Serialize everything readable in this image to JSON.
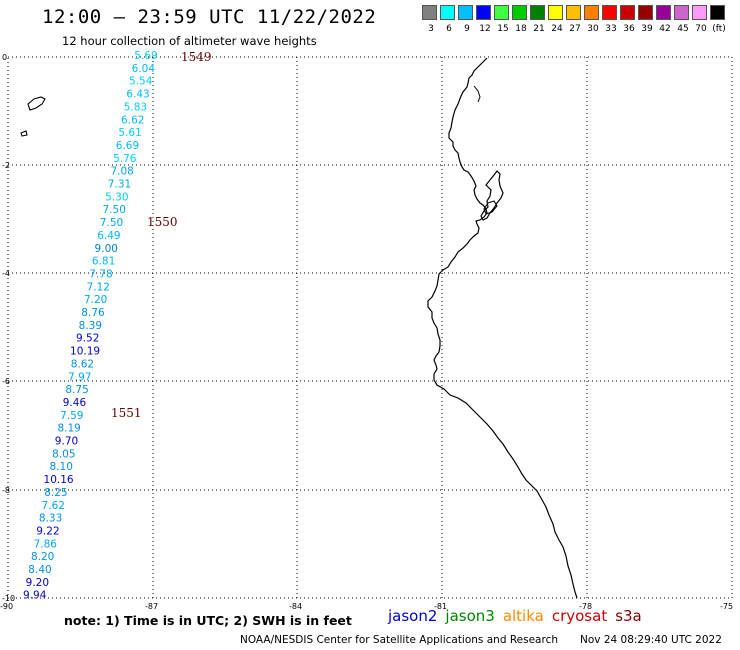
{
  "header": {
    "title": "12:00 – 23:59 UTC 11/22/2022",
    "subtitle": "12 hour collection of altimeter wave heights"
  },
  "color_scale": {
    "labels": [
      "3",
      "6",
      "9",
      "12",
      "15",
      "18",
      "21",
      "24",
      "27",
      "30",
      "33",
      "36",
      "39",
      "42",
      "45",
      "70",
      "(ft)"
    ],
    "colors": [
      "#808080",
      "#00ffff",
      "#00bfff",
      "#0000ff",
      "#40ff40",
      "#00cc00",
      "#008000",
      "#ffff00",
      "#ffbf00",
      "#ff8000",
      "#ff0000",
      "#cc0000",
      "#990000",
      "#990099",
      "#cc66cc",
      "#ff99ff",
      "#000000"
    ]
  },
  "axes": {
    "y_labels": [
      "0",
      "-2",
      "-4",
      "-6",
      "-8",
      "-10"
    ],
    "x_labels": [
      "-90",
      "-87",
      "-84",
      "-81",
      "-78",
      "-75"
    ]
  },
  "passes": [
    {
      "label": "1549"
    },
    {
      "label": "1550"
    },
    {
      "label": "1551"
    }
  ],
  "wave_heights": [
    {
      "v": "5.69",
      "c": "#00d0f0"
    },
    {
      "v": "6.04",
      "c": "#00b8ff"
    },
    {
      "v": "5.54",
      "c": "#00d0f0"
    },
    {
      "v": "6.43",
      "c": "#00b8ff"
    },
    {
      "v": "5.83",
      "c": "#00d0f0"
    },
    {
      "v": "6.62",
      "c": "#00b8ff"
    },
    {
      "v": "5.61",
      "c": "#00d0f0"
    },
    {
      "v": "6.69",
      "c": "#00b8ff"
    },
    {
      "v": "5.76",
      "c": "#00d0f0"
    },
    {
      "v": "7.08",
      "c": "#00a8e8"
    },
    {
      "v": "7.31",
      "c": "#00a8e8"
    },
    {
      "v": "5.30",
      "c": "#00d0f0"
    },
    {
      "v": "7.50",
      "c": "#00a8e8"
    },
    {
      "v": "7.50",
      "c": "#00a8e8"
    },
    {
      "v": "6.49",
      "c": "#00b8ff"
    },
    {
      "v": "9.00",
      "c": "#0080e0"
    },
    {
      "v": "6.81",
      "c": "#00b8ff"
    },
    {
      "v": "7.78",
      "c": "#00a8e8"
    },
    {
      "v": "7.12",
      "c": "#00a8e8"
    },
    {
      "v": "7.20",
      "c": "#00a8e8"
    },
    {
      "v": "8.76",
      "c": "#0090e8"
    },
    {
      "v": "8.39",
      "c": "#0090e8"
    },
    {
      "v": "9.52",
      "c": "#0000d8"
    },
    {
      "v": "10.19",
      "c": "#0000d8"
    },
    {
      "v": "8.62",
      "c": "#0090e8"
    },
    {
      "v": "7.97",
      "c": "#00a8e8"
    },
    {
      "v": "8.75",
      "c": "#0090e8"
    },
    {
      "v": "9.46",
      "c": "#0000d8"
    },
    {
      "v": "7.59",
      "c": "#00a8e8"
    },
    {
      "v": "8.19",
      "c": "#0090e8"
    },
    {
      "v": "9.70",
      "c": "#0000d8"
    },
    {
      "v": "8.05",
      "c": "#0090e8"
    },
    {
      "v": "8.10",
      "c": "#0090e8"
    },
    {
      "v": "10.16",
      "c": "#0000d8"
    },
    {
      "v": "8.25",
      "c": "#0090e8"
    },
    {
      "v": "7.62",
      "c": "#00a8e8"
    },
    {
      "v": "8.33",
      "c": "#0090e8"
    },
    {
      "v": "9.22",
      "c": "#0000d8"
    },
    {
      "v": "7.86",
      "c": "#00a8e8"
    },
    {
      "v": "8.20",
      "c": "#0090e8"
    },
    {
      "v": "8.40",
      "c": "#0090e8"
    },
    {
      "v": "9.20",
      "c": "#0000d8"
    },
    {
      "v": "9.94",
      "c": "#0000d8"
    }
  ],
  "notes": "note:  1) Time is in UTC;  2) SWH is in feet",
  "satellite_legend": [
    {
      "name": "jason2",
      "color": "#0000cc"
    },
    {
      "name": "jason3",
      "color": "#008800"
    },
    {
      "name": "altika",
      "color": "#ff8800"
    },
    {
      "name": "cryosat",
      "color": "#cc0000"
    },
    {
      "name": "s3a",
      "color": "#880000"
    }
  ],
  "footer": {
    "credit": "NOAA/NESDIS Center for Satellite Applications and Research",
    "timestamp": "Nov 24 08:29:40 UTC 2022"
  }
}
